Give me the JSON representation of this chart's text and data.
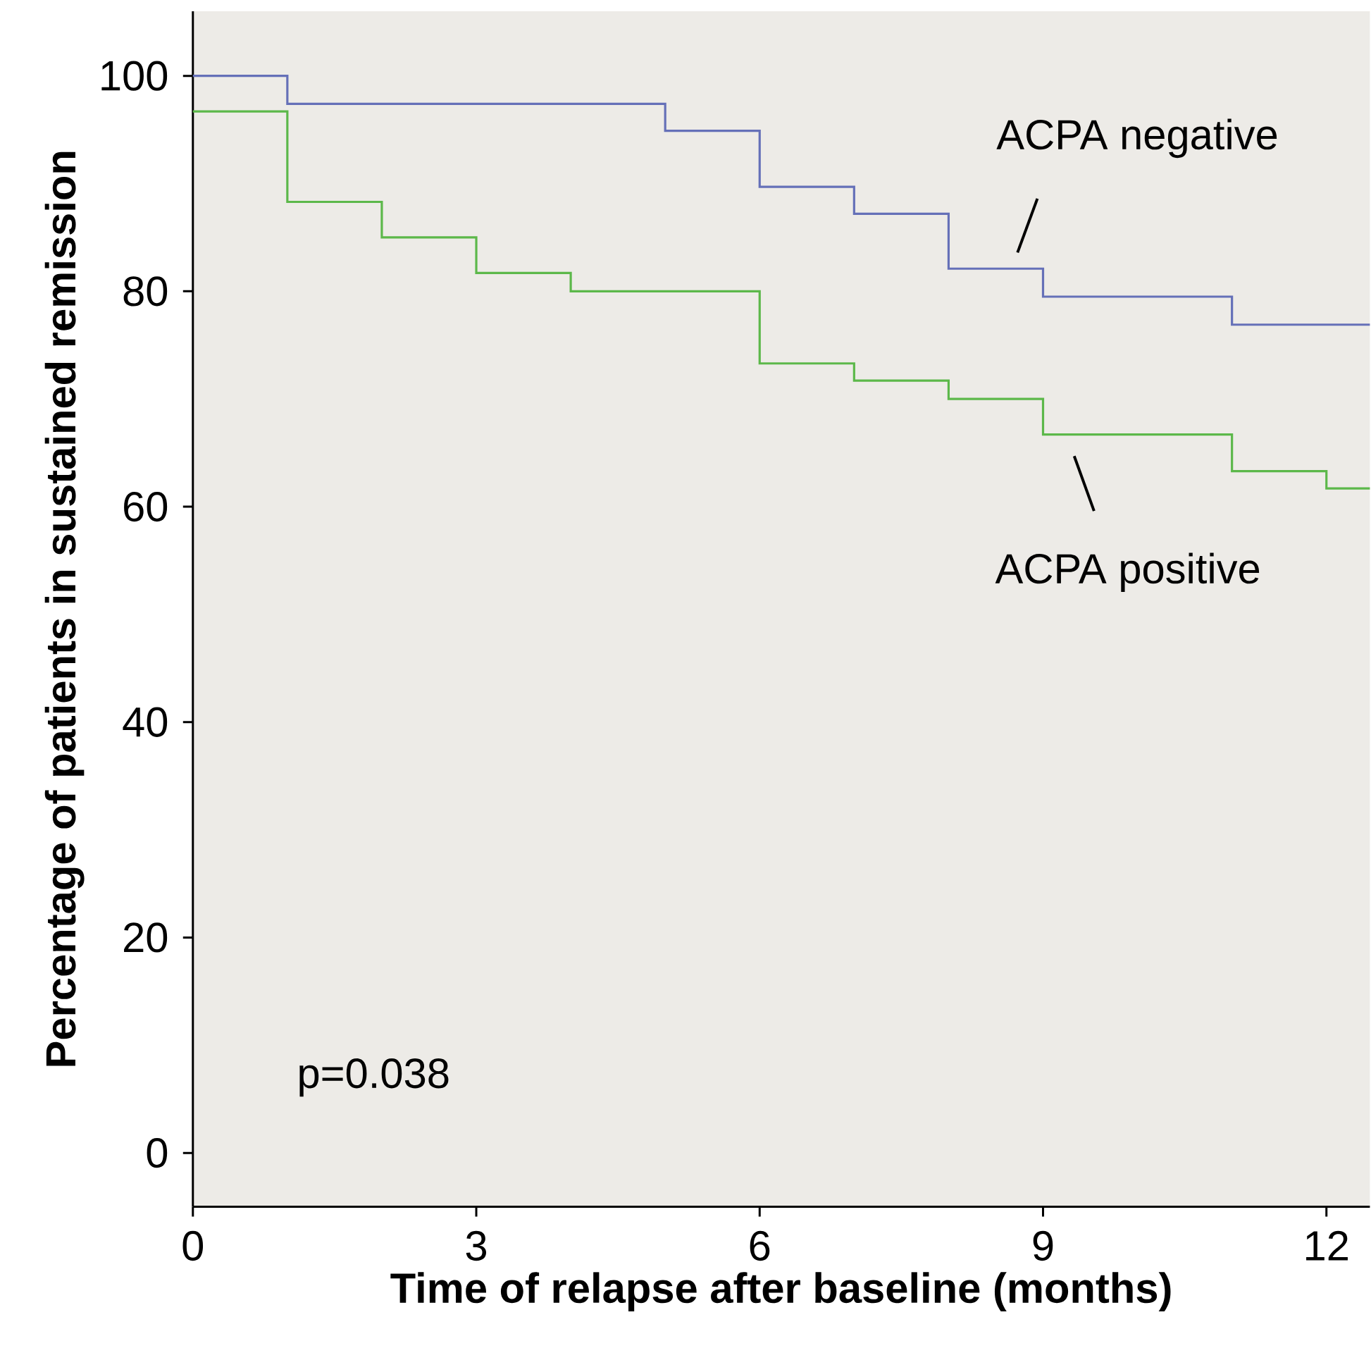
{
  "chart_data": {
    "type": "step",
    "xlabel": "Time of relapse after baseline (months)",
    "ylabel": "Percentage of patients in sustained remission",
    "xlim": [
      0,
      12.46
    ],
    "ylim": [
      -5,
      106
    ],
    "xticks": [
      0,
      3,
      6,
      9,
      12
    ],
    "yticks": [
      0,
      20,
      40,
      60,
      80,
      100
    ],
    "grid": false,
    "legend": false,
    "series": [
      {
        "name": "ACPA negative",
        "color": "#6570b8",
        "x": [
          0,
          1,
          5,
          6,
          7,
          8,
          9,
          11,
          12.46
        ],
        "values": [
          100,
          97.4,
          94.9,
          89.7,
          87.2,
          82.1,
          79.5,
          76.9,
          76.9
        ]
      },
      {
        "name": "ACPA positive",
        "color": "#5cb84a",
        "x": [
          0,
          1,
          2,
          3,
          4,
          6,
          7,
          8,
          9,
          11,
          12,
          12.46
        ],
        "values": [
          96.7,
          88.3,
          85,
          81.7,
          80,
          73.3,
          71.7,
          70,
          66.7,
          63.3,
          61.7,
          61.7
        ]
      }
    ],
    "annotations": [
      "p=0.038"
    ]
  }
}
